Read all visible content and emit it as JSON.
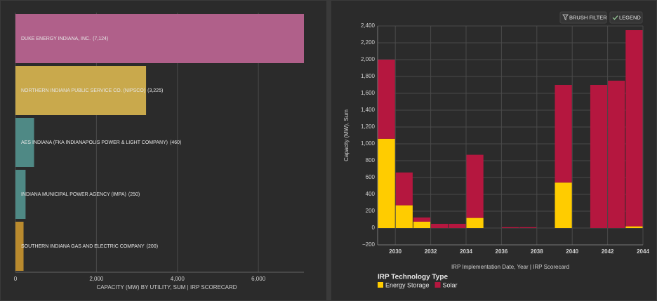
{
  "chart_data": [
    {
      "type": "bar",
      "orientation": "horizontal",
      "categories": [
        "DUKE ENERGY INDIANA, INC.",
        "NORTHERN INDIANA PUBLIC SERVICE CO. (NIPSCO)",
        "AES INDIANA (FKA INDIANAPOLIS POWER & LIGHT COMPANY)",
        "INDIANA MUNICIPAL POWER AGENCY (IMPA)",
        "SOUTHERN INDIANA GAS AND ELECTRIC COMPANY"
      ],
      "values": [
        7124,
        3225,
        460,
        250,
        200
      ],
      "value_labels": [
        "(7,124)",
        "(3,225)",
        "(460)",
        "(250)",
        "(200)"
      ],
      "colors": [
        "#b0608a",
        "#c9a94c",
        "#4f8985",
        "#4f8985",
        "#b98a2e"
      ],
      "xlabel": "CAPACITY (MW) BY UTILITY, SUM | IRP SCORECARD",
      "xlim": [
        0,
        7124
      ],
      "xticks": [
        0,
        {
          "value": 2000,
          "label": "2,000"
        },
        {
          "value": 4000,
          "label": "4,000"
        },
        {
          "value": 6000,
          "label": "6,000"
        }
      ],
      "grid": true
    },
    {
      "type": "stacked_bar",
      "buttons": [
        "BRUSH FILTER",
        "LEGEND"
      ],
      "xlabel": "IRP Implementation Date, Year | IRP Scorecard",
      "ylabel": "Capacity (MW), Sum",
      "legend_title": "IRP Technology Type",
      "x": [
        2029,
        2030,
        2031,
        2032,
        2033,
        2034,
        2036,
        2037,
        2039,
        2041,
        2042,
        2043
      ],
      "series": [
        {
          "name": "Energy Storage",
          "color": "#ffcc00",
          "values": [
            1060,
            270,
            75,
            null,
            null,
            120,
            null,
            null,
            540,
            null,
            null,
            20
          ]
        },
        {
          "name": "Solar",
          "color": "#b5173f",
          "values": [
            940,
            390,
            50,
            50,
            50,
            750,
            10,
            10,
            1160,
            1700,
            1750,
            2330
          ]
        }
      ],
      "xlim": [
        2029,
        2044
      ],
      "xticks": [
        2030,
        2032,
        2034,
        2036,
        2038,
        2040,
        2042,
        2044
      ],
      "ylim": [
        -200,
        2400
      ],
      "yticks": [
        {
          "value": -200,
          "label": "−200"
        },
        0,
        200,
        400,
        600,
        800,
        {
          "value": 1000,
          "label": "1,000"
        },
        {
          "value": 1200,
          "label": "1,200"
        },
        {
          "value": 1400,
          "label": "1,400"
        },
        {
          "value": 1600,
          "label": "1,600"
        },
        {
          "value": 1800,
          "label": "1,800"
        },
        {
          "value": 2000,
          "label": "2,000"
        },
        {
          "value": 2200,
          "label": "2,200"
        },
        {
          "value": 2400,
          "label": "2,400"
        }
      ],
      "grid": true
    }
  ]
}
